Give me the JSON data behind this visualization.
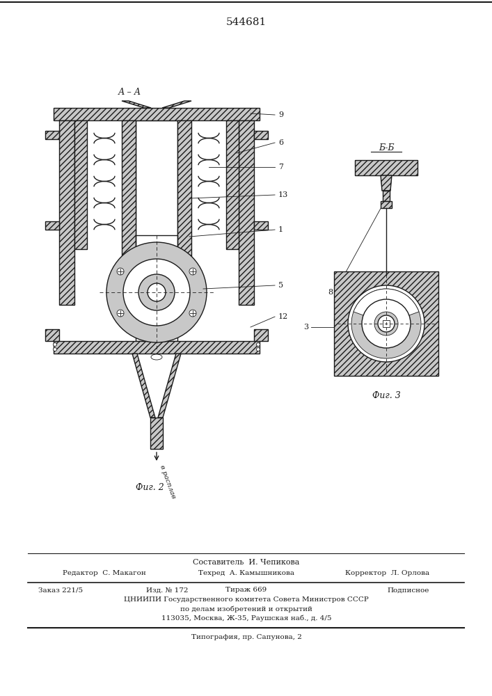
{
  "patent_number": "544681",
  "fig2_label": "Фиг. 2",
  "fig3_label": "Фиг. 3",
  "section_aa": "А – А",
  "section_bb": "Б-Б",
  "v_rasplav": "в расплав",
  "составитель": "Составитель  И. Чепикова",
  "редактор": "Редактор  С. Макагон",
  "техред": "Техред  А. Камышникова",
  "корректор": "Корректор  Л. Орлова",
  "заказ": "Заказ 221/5",
  "изд": "Изд. № 172",
  "тираж": "Тираж 669",
  "подписное": "Подписное",
  "цниипи": "ЦНИИПИ Государственного комитета Совета Министров СССР",
  "по_делам": "по делам изобретений и открытий",
  "адрес": "113035, Москва, Ж-35, Раушская наб., д. 4/5",
  "типография": "Типография, пр. Сапунова, 2",
  "bg_color": "#ffffff",
  "line_color": "#1a1a1a"
}
